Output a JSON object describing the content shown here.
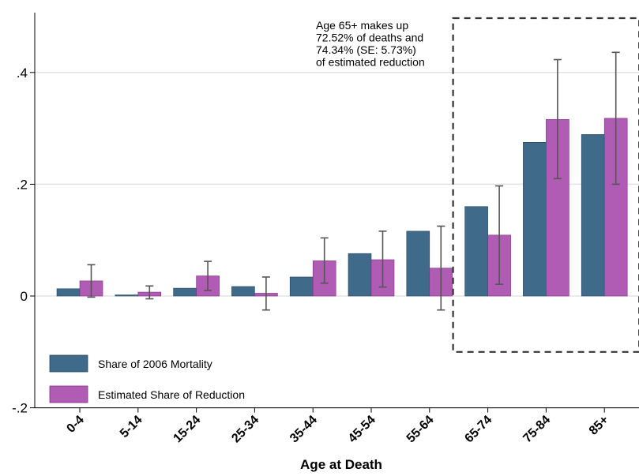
{
  "chart_data": {
    "type": "bar",
    "xlabel": "Age at Death",
    "ylabel": "",
    "ylim": [
      -0.2,
      0.5
    ],
    "yticks": [
      -0.2,
      0,
      0.2,
      0.4
    ],
    "ytick_labels": [
      "-.2",
      "0",
      ".2",
      ".4"
    ],
    "grid": true,
    "legend_position": "bottom-left",
    "categories": [
      "0-4",
      "5-14",
      "15-24",
      "25-34",
      "35-44",
      "45-54",
      "55-64",
      "65-74",
      "75-84",
      "85+"
    ],
    "series": [
      {
        "name": "Share of 2006 Mortality",
        "color": "#3f6a8a",
        "values": [
          0.013,
          0.002,
          0.014,
          0.017,
          0.034,
          0.076,
          0.116,
          0.16,
          0.275,
          0.289
        ]
      },
      {
        "name": "Estimated Share of Reduction",
        "color": "#b05cb4",
        "values": [
          0.027,
          0.007,
          0.036,
          0.005,
          0.063,
          0.065,
          0.05,
          0.109,
          0.316,
          0.318
        ],
        "ci_low": [
          -0.002,
          -0.005,
          0.01,
          -0.025,
          0.023,
          0.016,
          -0.025,
          0.021,
          0.21,
          0.2
        ],
        "ci_high": [
          0.056,
          0.018,
          0.062,
          0.034,
          0.104,
          0.116,
          0.125,
          0.197,
          0.423,
          0.436
        ]
      }
    ],
    "annotation": {
      "lines": [
        "Age 65+ makes up",
        "72.52% of deaths and",
        "74.34% (SE:  5.73%)",
        "of estimated reduction"
      ],
      "highlight_from": "65-74",
      "highlight_to": "85+",
      "highlight_ylim": [
        -0.1,
        0.5
      ]
    }
  }
}
